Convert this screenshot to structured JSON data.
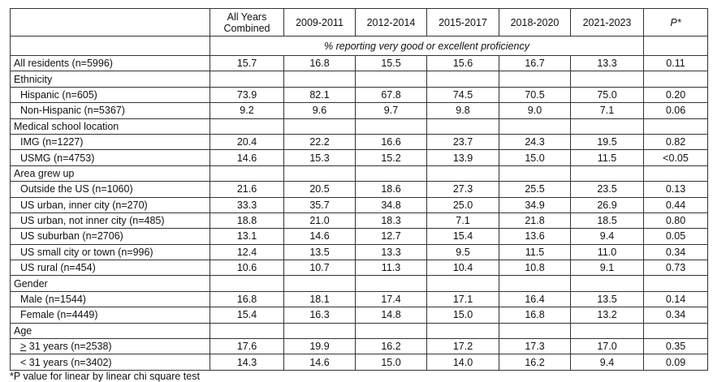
{
  "headers": [
    "",
    "All Years Combined",
    "2009-2011",
    "2012-2014",
    "2015-2017",
    "2018-2020",
    "2021-2023",
    "P*"
  ],
  "subheader": "% reporting very good or excellent proficiency",
  "rows": [
    {
      "label": "All residents (n=5996)",
      "values": [
        "15.7",
        "16.8",
        "15.5",
        "15.6",
        "16.7",
        "13.3",
        "0.11"
      ]
    },
    {
      "label": "Ethnicity",
      "group": true
    },
    {
      "label": "Hispanic (n=605)",
      "values": [
        "73.9",
        "82.1",
        "67.8",
        "74.5",
        "70.5",
        "75.0",
        "0.20"
      ]
    },
    {
      "label": "Non-Hispanic (n=5367)",
      "values": [
        "9.2",
        "9.6",
        "9.7",
        "9.8",
        "9.0",
        "7.1",
        "0.06"
      ]
    },
    {
      "label": "Medical school location",
      "group": true
    },
    {
      "label": "IMG (n=1227)",
      "values": [
        "20.4",
        "22.2",
        "16.6",
        "23.7",
        "24.3",
        "19.5",
        "0.82"
      ]
    },
    {
      "label": "USMG (n=4753)",
      "values": [
        "14.6",
        "15.3",
        "15.2",
        "13.9",
        "15.0",
        "11.5",
        "<0.05"
      ]
    },
    {
      "label": "Area grew up",
      "group": true
    },
    {
      "label": "Outside the US (n=1060)",
      "values": [
        "21.6",
        "20.5",
        "18.6",
        "27.3",
        "25.5",
        "23.5",
        "0.13"
      ]
    },
    {
      "label": "US urban, inner city (n=270)",
      "values": [
        "33.3",
        "35.7",
        "34.8",
        "25.0",
        "34.9",
        "26.9",
        "0.44"
      ]
    },
    {
      "label": "US urban, not inner city (n=485)",
      "values": [
        "18.8",
        "21.0",
        "18.3",
        "7.1",
        "21.8",
        "18.5",
        "0.80"
      ]
    },
    {
      "label": "US suburban (n=2706)",
      "values": [
        "13.1",
        "14.6",
        "12.7",
        "15.4",
        "13.6",
        "9.4",
        "0.05"
      ]
    },
    {
      "label": "US small city or town (n=996)",
      "values": [
        "12.4",
        "13.5",
        "13.3",
        "9.5",
        "11.5",
        "11.0",
        "0.34"
      ]
    },
    {
      "label": "US rural (n=454)",
      "values": [
        "10.6",
        "10.7",
        "11.3",
        "10.4",
        "10.8",
        "9.1",
        "0.73"
      ]
    },
    {
      "label": "Gender",
      "group": true
    },
    {
      "label": "Male (n=1544)",
      "values": [
        "16.8",
        "18.1",
        "17.4",
        "17.1",
        "16.4",
        "13.5",
        "0.14"
      ]
    },
    {
      "label": "Female (n=4449)",
      "values": [
        "15.4",
        "16.3",
        "14.8",
        "15.0",
        "16.8",
        "13.2",
        "0.34"
      ]
    },
    {
      "label": "Age",
      "group": true
    },
    {
      "label": "> 31 years (n=2538)",
      "values": [
        "17.6",
        "19.9",
        "16.2",
        "17.2",
        "17.3",
        "17.0",
        "0.35"
      ]
    },
    {
      "label": "< 31 years (n=3402)",
      "values": [
        "14.3",
        "14.6",
        "15.0",
        "14.0",
        "16.2",
        "9.4",
        "0.09"
      ]
    }
  ],
  "footnote": "*P value for linear by linear chi square test"
}
